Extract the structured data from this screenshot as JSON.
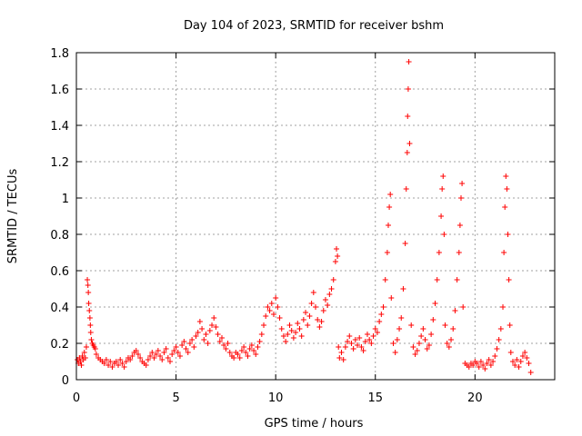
{
  "chart_data": {
    "type": "scatter",
    "title": "Day 104 of 2023, SRMTID for receiver bshm",
    "xlabel": "GPS time / hours",
    "ylabel": "SRMTID / TECUs",
    "xlim": [
      0,
      24
    ],
    "ylim": [
      0,
      1.8
    ],
    "grid": true,
    "x_ticks": [
      0,
      5,
      10,
      15,
      20
    ],
    "x_tick_labels": [
      "0",
      "5",
      "10",
      "15",
      "20"
    ],
    "y_ticks": [
      0,
      0.2,
      0.4,
      0.6,
      0.8,
      1.0,
      1.2,
      1.4,
      1.6,
      1.8
    ],
    "y_tick_labels": [
      "0",
      "0.2",
      "0.4",
      "0.6",
      "0.8",
      "1",
      "1.2",
      "1.4",
      "1.6",
      "1.8"
    ],
    "marker": "+",
    "series": [
      {
        "name": "SRMTID",
        "color": "#ff0000",
        "points": [
          [
            0.05,
            0.11
          ],
          [
            0.1,
            0.09
          ],
          [
            0.15,
            0.12
          ],
          [
            0.2,
            0.1
          ],
          [
            0.25,
            0.08
          ],
          [
            0.3,
            0.13
          ],
          [
            0.35,
            0.11
          ],
          [
            0.4,
            0.15
          ],
          [
            0.45,
            0.12
          ],
          [
            0.5,
            0.18
          ],
          [
            0.55,
            0.55
          ],
          [
            0.58,
            0.52
          ],
          [
            0.6,
            0.48
          ],
          [
            0.62,
            0.42
          ],
          [
            0.65,
            0.38
          ],
          [
            0.68,
            0.34
          ],
          [
            0.7,
            0.3
          ],
          [
            0.72,
            0.26
          ],
          [
            0.75,
            0.22
          ],
          [
            0.8,
            0.2
          ],
          [
            0.85,
            0.19
          ],
          [
            0.9,
            0.18
          ],
          [
            0.95,
            0.17
          ],
          [
            1.0,
            0.14
          ],
          [
            1.1,
            0.12
          ],
          [
            1.2,
            0.11
          ],
          [
            1.3,
            0.1
          ],
          [
            1.4,
            0.09
          ],
          [
            1.5,
            0.11
          ],
          [
            1.6,
            0.08
          ],
          [
            1.7,
            0.1
          ],
          [
            1.8,
            0.07
          ],
          [
            1.9,
            0.09
          ],
          [
            2.0,
            0.1
          ],
          [
            2.1,
            0.08
          ],
          [
            2.2,
            0.11
          ],
          [
            2.3,
            0.09
          ],
          [
            2.4,
            0.07
          ],
          [
            2.5,
            0.1
          ],
          [
            2.6,
            0.12
          ],
          [
            2.7,
            0.11
          ],
          [
            2.8,
            0.13
          ],
          [
            2.9,
            0.15
          ],
          [
            3.0,
            0.16
          ],
          [
            3.1,
            0.14
          ],
          [
            3.2,
            0.12
          ],
          [
            3.3,
            0.1
          ],
          [
            3.4,
            0.09
          ],
          [
            3.5,
            0.08
          ],
          [
            3.6,
            0.11
          ],
          [
            3.7,
            0.13
          ],
          [
            3.8,
            0.15
          ],
          [
            3.9,
            0.12
          ],
          [
            4.0,
            0.14
          ],
          [
            4.1,
            0.16
          ],
          [
            4.2,
            0.13
          ],
          [
            4.3,
            0.11
          ],
          [
            4.4,
            0.15
          ],
          [
            4.5,
            0.17
          ],
          [
            4.6,
            0.12
          ],
          [
            4.7,
            0.1
          ],
          [
            4.8,
            0.14
          ],
          [
            4.9,
            0.16
          ],
          [
            5.0,
            0.18
          ],
          [
            5.1,
            0.15
          ],
          [
            5.2,
            0.13
          ],
          [
            5.3,
            0.19
          ],
          [
            5.4,
            0.21
          ],
          [
            5.5,
            0.17
          ],
          [
            5.6,
            0.15
          ],
          [
            5.7,
            0.2
          ],
          [
            5.8,
            0.22
          ],
          [
            5.9,
            0.18
          ],
          [
            6.0,
            0.24
          ],
          [
            6.1,
            0.26
          ],
          [
            6.2,
            0.32
          ],
          [
            6.3,
            0.28
          ],
          [
            6.4,
            0.22
          ],
          [
            6.5,
            0.25
          ],
          [
            6.6,
            0.2
          ],
          [
            6.7,
            0.27
          ],
          [
            6.8,
            0.3
          ],
          [
            6.9,
            0.34
          ],
          [
            7.0,
            0.29
          ],
          [
            7.1,
            0.25
          ],
          [
            7.2,
            0.21
          ],
          [
            7.3,
            0.23
          ],
          [
            7.4,
            0.19
          ],
          [
            7.5,
            0.17
          ],
          [
            7.6,
            0.2
          ],
          [
            7.7,
            0.15
          ],
          [
            7.8,
            0.13
          ],
          [
            7.9,
            0.12
          ],
          [
            8.0,
            0.15
          ],
          [
            8.1,
            0.14
          ],
          [
            8.2,
            0.12
          ],
          [
            8.3,
            0.16
          ],
          [
            8.4,
            0.18
          ],
          [
            8.5,
            0.15
          ],
          [
            8.6,
            0.13
          ],
          [
            8.7,
            0.17
          ],
          [
            8.8,
            0.19
          ],
          [
            8.9,
            0.16
          ],
          [
            9.0,
            0.14
          ],
          [
            9.1,
            0.18
          ],
          [
            9.2,
            0.21
          ],
          [
            9.3,
            0.25
          ],
          [
            9.4,
            0.3
          ],
          [
            9.5,
            0.35
          ],
          [
            9.6,
            0.4
          ],
          [
            9.7,
            0.38
          ],
          [
            9.8,
            0.42
          ],
          [
            9.9,
            0.36
          ],
          [
            10.0,
            0.45
          ],
          [
            10.1,
            0.4
          ],
          [
            10.2,
            0.34
          ],
          [
            10.3,
            0.28
          ],
          [
            10.4,
            0.24
          ],
          [
            10.5,
            0.21
          ],
          [
            10.6,
            0.25
          ],
          [
            10.7,
            0.3
          ],
          [
            10.8,
            0.27
          ],
          [
            10.9,
            0.23
          ],
          [
            11.0,
            0.26
          ],
          [
            11.1,
            0.31
          ],
          [
            11.2,
            0.28
          ],
          [
            11.3,
            0.24
          ],
          [
            11.4,
            0.33
          ],
          [
            11.5,
            0.37
          ],
          [
            11.6,
            0.3
          ],
          [
            11.7,
            0.35
          ],
          [
            11.8,
            0.42
          ],
          [
            11.9,
            0.48
          ],
          [
            12.0,
            0.4
          ],
          [
            12.1,
            0.33
          ],
          [
            12.2,
            0.29
          ],
          [
            12.3,
            0.32
          ],
          [
            12.4,
            0.38
          ],
          [
            12.5,
            0.44
          ],
          [
            12.6,
            0.41
          ],
          [
            12.7,
            0.47
          ],
          [
            12.8,
            0.5
          ],
          [
            12.9,
            0.55
          ],
          [
            13.0,
            0.65
          ],
          [
            13.05,
            0.72
          ],
          [
            13.1,
            0.68
          ],
          [
            13.15,
            0.18
          ],
          [
            13.2,
            0.12
          ],
          [
            13.3,
            0.15
          ],
          [
            13.4,
            0.11
          ],
          [
            13.5,
            0.18
          ],
          [
            13.6,
            0.21
          ],
          [
            13.7,
            0.24
          ],
          [
            13.8,
            0.2
          ],
          [
            13.9,
            0.17
          ],
          [
            14.0,
            0.22
          ],
          [
            14.1,
            0.19
          ],
          [
            14.2,
            0.23
          ],
          [
            14.3,
            0.18
          ],
          [
            14.4,
            0.16
          ],
          [
            14.5,
            0.21
          ],
          [
            14.6,
            0.25
          ],
          [
            14.7,
            0.22
          ],
          [
            14.8,
            0.2
          ],
          [
            14.9,
            0.24
          ],
          [
            15.0,
            0.28
          ],
          [
            15.1,
            0.26
          ],
          [
            15.2,
            0.32
          ],
          [
            15.3,
            0.36
          ],
          [
            15.4,
            0.4
          ],
          [
            15.5,
            0.55
          ],
          [
            15.6,
            0.7
          ],
          [
            15.65,
            0.85
          ],
          [
            15.7,
            0.95
          ],
          [
            15.75,
            1.02
          ],
          [
            15.8,
            0.45
          ],
          [
            15.9,
            0.2
          ],
          [
            16.0,
            0.15
          ],
          [
            16.1,
            0.22
          ],
          [
            16.2,
            0.28
          ],
          [
            16.3,
            0.34
          ],
          [
            16.4,
            0.5
          ],
          [
            16.5,
            0.75
          ],
          [
            16.55,
            1.05
          ],
          [
            16.6,
            1.25
          ],
          [
            16.62,
            1.45
          ],
          [
            16.65,
            1.6
          ],
          [
            16.68,
            1.75
          ],
          [
            16.72,
            1.3
          ],
          [
            16.8,
            0.3
          ],
          [
            16.9,
            0.18
          ],
          [
            17.0,
            0.14
          ],
          [
            17.1,
            0.16
          ],
          [
            17.2,
            0.2
          ],
          [
            17.3,
            0.24
          ],
          [
            17.4,
            0.28
          ],
          [
            17.5,
            0.22
          ],
          [
            17.6,
            0.17
          ],
          [
            17.7,
            0.19
          ],
          [
            17.8,
            0.25
          ],
          [
            17.9,
            0.33
          ],
          [
            18.0,
            0.42
          ],
          [
            18.1,
            0.55
          ],
          [
            18.2,
            0.7
          ],
          [
            18.3,
            0.9
          ],
          [
            18.35,
            1.05
          ],
          [
            18.4,
            1.12
          ],
          [
            18.45,
            0.8
          ],
          [
            18.5,
            0.3
          ],
          [
            18.6,
            0.2
          ],
          [
            18.7,
            0.18
          ],
          [
            18.8,
            0.22
          ],
          [
            18.9,
            0.28
          ],
          [
            19.0,
            0.38
          ],
          [
            19.1,
            0.55
          ],
          [
            19.2,
            0.7
          ],
          [
            19.25,
            0.85
          ],
          [
            19.3,
            1.0
          ],
          [
            19.35,
            1.08
          ],
          [
            19.4,
            0.4
          ],
          [
            19.5,
            0.09
          ],
          [
            19.6,
            0.08
          ],
          [
            19.7,
            0.07
          ],
          [
            19.8,
            0.09
          ],
          [
            19.9,
            0.08
          ],
          [
            20.0,
            0.1
          ],
          [
            20.1,
            0.09
          ],
          [
            20.2,
            0.07
          ],
          [
            20.3,
            0.1
          ],
          [
            20.4,
            0.08
          ],
          [
            20.5,
            0.06
          ],
          [
            20.6,
            0.09
          ],
          [
            20.7,
            0.11
          ],
          [
            20.8,
            0.08
          ],
          [
            20.9,
            0.1
          ],
          [
            21.0,
            0.13
          ],
          [
            21.1,
            0.17
          ],
          [
            21.2,
            0.22
          ],
          [
            21.3,
            0.28
          ],
          [
            21.4,
            0.4
          ],
          [
            21.45,
            0.7
          ],
          [
            21.5,
            0.95
          ],
          [
            21.55,
            1.12
          ],
          [
            21.6,
            1.05
          ],
          [
            21.65,
            0.8
          ],
          [
            21.7,
            0.55
          ],
          [
            21.75,
            0.3
          ],
          [
            21.8,
            0.15
          ],
          [
            21.9,
            0.1
          ],
          [
            22.0,
            0.08
          ],
          [
            22.1,
            0.11
          ],
          [
            22.2,
            0.07
          ],
          [
            22.3,
            0.1
          ],
          [
            22.4,
            0.13
          ],
          [
            22.5,
            0.15
          ],
          [
            22.6,
            0.12
          ],
          [
            22.7,
            0.09
          ],
          [
            22.8,
            0.04
          ]
        ]
      }
    ]
  }
}
